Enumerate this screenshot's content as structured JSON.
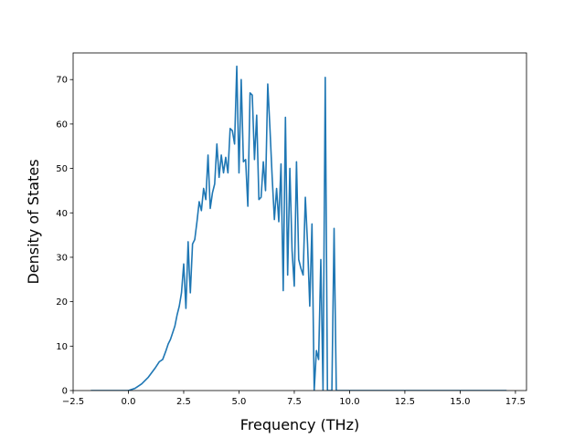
{
  "chart_data": {
    "type": "line",
    "title": "",
    "xlabel": "Frequency (THz)",
    "ylabel": "Density of States",
    "xlim": [
      -2.5,
      18.0
    ],
    "ylim": [
      0,
      76
    ],
    "grid": false,
    "legend": "none",
    "line_color": "#1f77b4",
    "x_ticks": [
      -2.5,
      0.0,
      2.5,
      5.0,
      7.5,
      10.0,
      12.5,
      15.0,
      17.5
    ],
    "x_tick_labels": [
      "−2.5",
      "0.0",
      "2.5",
      "5.0",
      "7.5",
      "10.0",
      "12.5",
      "15.0",
      "17.5"
    ],
    "y_ticks": [
      0,
      10,
      20,
      30,
      40,
      50,
      60,
      70
    ],
    "y_tick_labels": [
      "0",
      "10",
      "20",
      "30",
      "40",
      "50",
      "60",
      "70"
    ],
    "series": [
      {
        "x": [
          -1.7,
          0.0,
          0.3,
          0.6,
          0.9,
          1.2,
          1.4,
          1.55,
          1.7,
          1.8,
          1.9,
          2.0,
          2.1,
          2.2,
          2.3,
          2.4,
          2.5,
          2.6,
          2.7,
          2.75,
          2.8,
          2.9,
          3.0,
          3.1,
          3.2,
          3.3,
          3.4,
          3.5,
          3.6,
          3.7,
          3.8,
          3.9,
          4.0,
          4.1,
          4.2,
          4.3,
          4.4,
          4.5,
          4.6,
          4.7,
          4.8,
          4.9,
          5.0,
          5.1,
          5.2,
          5.3,
          5.4,
          5.5,
          5.6,
          5.7,
          5.8,
          5.9,
          6.0,
          6.1,
          6.2,
          6.3,
          6.4,
          6.5,
          6.6,
          6.7,
          6.8,
          6.9,
          7.0,
          7.1,
          7.2,
          7.3,
          7.4,
          7.5,
          7.6,
          7.7,
          7.8,
          7.9,
          8.0,
          8.1,
          8.2,
          8.3,
          8.4,
          8.5,
          8.6,
          8.7,
          8.8,
          8.9,
          9.0,
          9.1,
          9.2,
          9.3,
          9.4,
          9.5,
          9.6,
          9.7,
          9.8,
          10.0,
          11.0,
          13.0,
          15.0,
          17.1
        ],
        "y": [
          0,
          0,
          0.5,
          1.5,
          3.0,
          5.0,
          6.5,
          7.0,
          9.0,
          10.5,
          11.5,
          13.0,
          14.5,
          17.0,
          19.0,
          22.0,
          28.5,
          18.5,
          33.5,
          27.0,
          22.0,
          33.0,
          34.0,
          38.0,
          42.5,
          40.5,
          45.5,
          43.0,
          53.0,
          41.0,
          44.5,
          46.5,
          55.5,
          48.0,
          53.0,
          49.0,
          52.5,
          49.0,
          59.0,
          58.5,
          55.5,
          73.0,
          49.0,
          70.0,
          51.5,
          52.0,
          41.5,
          67.0,
          66.5,
          52.0,
          62.0,
          43.0,
          43.5,
          51.5,
          45.0,
          69.0,
          59.0,
          48.0,
          38.5,
          45.5,
          38.0,
          51.0,
          22.5,
          61.5,
          26.0,
          50.0,
          31.5,
          23.5,
          51.5,
          29.5,
          27.5,
          26.0,
          43.5,
          33.0,
          19.0,
          37.5,
          0,
          9.0,
          7.0,
          29.5,
          0,
          70.5,
          0,
          0,
          0,
          36.5,
          0,
          0,
          0,
          0,
          0,
          0,
          0,
          0,
          0,
          0
        ]
      }
    ]
  }
}
